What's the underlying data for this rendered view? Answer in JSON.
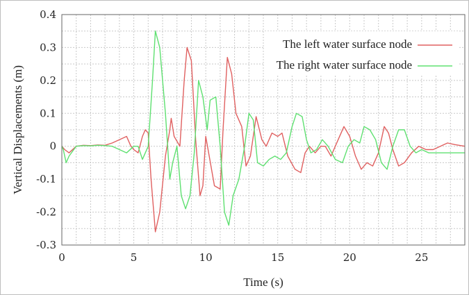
{
  "chart_data": {
    "type": "line",
    "title": "",
    "xlabel": "Time (s)",
    "ylabel": "Vertical Displacements (m)",
    "xlim": [
      0,
      28
    ],
    "ylim": [
      -0.3,
      0.4
    ],
    "xticks": [
      0,
      5,
      10,
      15,
      20,
      25
    ],
    "yticks": [
      -0.3,
      -0.2,
      -0.1,
      0,
      0.1,
      0.2,
      0.3,
      0.4
    ],
    "ytick_labels": [
      "-0.3",
      "-0.2",
      "-0.1",
      "0",
      "0.1",
      "0.2",
      "0.3",
      "0.4"
    ],
    "grid": true,
    "legend_position": "top-right",
    "series": [
      {
        "name": "The left water surface node",
        "color": "#e06060",
        "points": [
          [
            0,
            0
          ],
          [
            0.2,
            -0.01
          ],
          [
            0.5,
            -0.02
          ],
          [
            1,
            0.0
          ],
          [
            1.5,
            0.003
          ],
          [
            2,
            0.002
          ],
          [
            2.5,
            0.004
          ],
          [
            3,
            0.003
          ],
          [
            3.5,
            0.01
          ],
          [
            4,
            0.02
          ],
          [
            4.5,
            0.03
          ],
          [
            4.8,
            0.0
          ],
          [
            5,
            -0.01
          ],
          [
            5.3,
            -0.02
          ],
          [
            5.6,
            0.03
          ],
          [
            5.8,
            0.05
          ],
          [
            6.0,
            0.04
          ],
          [
            6.2,
            -0.1
          ],
          [
            6.5,
            -0.26
          ],
          [
            6.8,
            -0.2
          ],
          [
            7.2,
            -0.03
          ],
          [
            7.5,
            0.05
          ],
          [
            7.6,
            0.085
          ],
          [
            7.8,
            0.03
          ],
          [
            8.2,
            0.0
          ],
          [
            8.5,
            0.2
          ],
          [
            8.7,
            0.3
          ],
          [
            9.0,
            0.26
          ],
          [
            9.3,
            0.02
          ],
          [
            9.6,
            -0.15
          ],
          [
            9.8,
            -0.12
          ],
          [
            10.0,
            0.03
          ],
          [
            10.2,
            -0.02
          ],
          [
            10.6,
            -0.12
          ],
          [
            11.0,
            -0.13
          ],
          [
            11.2,
            0.05
          ],
          [
            11.5,
            0.27
          ],
          [
            11.8,
            0.22
          ],
          [
            12.1,
            0.1
          ],
          [
            12.5,
            0.06
          ],
          [
            12.8,
            -0.06
          ],
          [
            13.1,
            -0.03
          ],
          [
            13.5,
            0.09
          ],
          [
            13.9,
            0.02
          ],
          [
            14.2,
            0.0
          ],
          [
            14.6,
            0.04
          ],
          [
            15.0,
            0.03
          ],
          [
            15.3,
            0.04
          ],
          [
            15.7,
            -0.03
          ],
          [
            16.2,
            -0.07
          ],
          [
            16.6,
            -0.08
          ],
          [
            16.9,
            -0.02
          ],
          [
            17.2,
            0.0
          ],
          [
            17.6,
            -0.02
          ],
          [
            18.0,
            0.0
          ],
          [
            18.3,
            0.0
          ],
          [
            18.7,
            -0.03
          ],
          [
            19.2,
            0.02
          ],
          [
            19.6,
            0.06
          ],
          [
            20.0,
            0.03
          ],
          [
            20.4,
            -0.03
          ],
          [
            20.8,
            -0.07
          ],
          [
            21.2,
            -0.05
          ],
          [
            21.6,
            -0.06
          ],
          [
            22.0,
            -0.02
          ],
          [
            22.4,
            0.06
          ],
          [
            22.7,
            0.04
          ],
          [
            23.0,
            -0.01
          ],
          [
            23.4,
            -0.06
          ],
          [
            23.8,
            -0.05
          ],
          [
            24.3,
            -0.02
          ],
          [
            24.8,
            0.0
          ],
          [
            25.3,
            -0.01
          ],
          [
            25.8,
            -0.01
          ],
          [
            26.3,
            0.0
          ],
          [
            26.8,
            0.01
          ],
          [
            27.3,
            0.005
          ],
          [
            28,
            0.0
          ]
        ]
      },
      {
        "name": "The right water surface node",
        "color": "#5ee070",
        "points": [
          [
            0,
            0
          ],
          [
            0.1,
            -0.01
          ],
          [
            0.3,
            -0.05
          ],
          [
            0.5,
            -0.03
          ],
          [
            1,
            0.0
          ],
          [
            1.5,
            0.002
          ],
          [
            2,
            0.001
          ],
          [
            2.5,
            0.003
          ],
          [
            3,
            0.002
          ],
          [
            3.5,
            0.0
          ],
          [
            4,
            -0.01
          ],
          [
            4.5,
            -0.02
          ],
          [
            5,
            0.0
          ],
          [
            5.3,
            0.0
          ],
          [
            5.6,
            -0.04
          ],
          [
            6.0,
            0.0
          ],
          [
            6.3,
            0.2
          ],
          [
            6.5,
            0.35
          ],
          [
            6.8,
            0.3
          ],
          [
            7.2,
            0.1
          ],
          [
            7.5,
            -0.1
          ],
          [
            7.7,
            -0.05
          ],
          [
            8.0,
            0.0
          ],
          [
            8.3,
            -0.15
          ],
          [
            8.6,
            -0.19
          ],
          [
            8.9,
            -0.15
          ],
          [
            9.2,
            -0.02
          ],
          [
            9.5,
            0.2
          ],
          [
            9.8,
            0.15
          ],
          [
            10.1,
            0.05
          ],
          [
            10.3,
            0.14
          ],
          [
            10.7,
            0.15
          ],
          [
            11.0,
            0.0
          ],
          [
            11.3,
            -0.2
          ],
          [
            11.6,
            -0.24
          ],
          [
            11.9,
            -0.15
          ],
          [
            12.3,
            -0.1
          ],
          [
            12.7,
            0.0
          ],
          [
            13.0,
            0.1
          ],
          [
            13.3,
            0.08
          ],
          [
            13.6,
            -0.05
          ],
          [
            14.0,
            -0.06
          ],
          [
            14.4,
            -0.04
          ],
          [
            14.8,
            -0.03
          ],
          [
            15.2,
            -0.04
          ],
          [
            15.6,
            -0.02
          ],
          [
            16.0,
            0.06
          ],
          [
            16.3,
            0.1
          ],
          [
            16.7,
            0.09
          ],
          [
            17.0,
            0.02
          ],
          [
            17.3,
            -0.02
          ],
          [
            17.7,
            -0.01
          ],
          [
            18.1,
            0.02
          ],
          [
            18.5,
            0.0
          ],
          [
            19.0,
            -0.04
          ],
          [
            19.5,
            -0.05
          ],
          [
            19.9,
            0.0
          ],
          [
            20.3,
            0.02
          ],
          [
            20.7,
            0.01
          ],
          [
            21.0,
            0.06
          ],
          [
            21.4,
            0.05
          ],
          [
            21.8,
            0.02
          ],
          [
            22.2,
            -0.05
          ],
          [
            22.6,
            -0.07
          ],
          [
            23.0,
            0.0
          ],
          [
            23.4,
            0.05
          ],
          [
            23.8,
            0.05
          ],
          [
            24.2,
            0.0
          ],
          [
            24.6,
            -0.02
          ],
          [
            25.0,
            -0.01
          ],
          [
            25.5,
            -0.02
          ],
          [
            26.0,
            -0.02
          ],
          [
            26.5,
            -0.02
          ],
          [
            27,
            -0.02
          ],
          [
            28,
            -0.02
          ]
        ]
      }
    ]
  }
}
